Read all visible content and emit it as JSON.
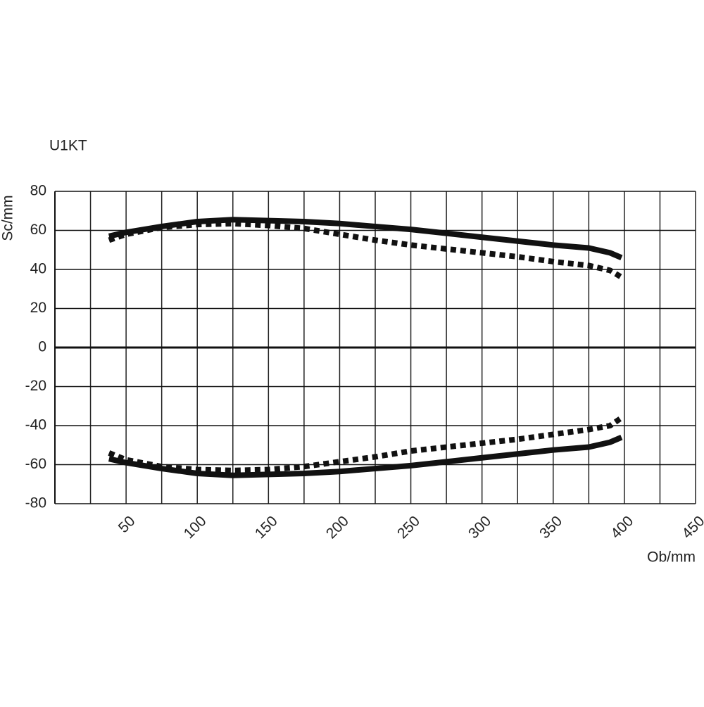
{
  "chart_data": {
    "type": "line",
    "title": "U1KT",
    "x_label": "Ob/mm",
    "y_label": "Sc/mm",
    "x": [
      38,
      50,
      75,
      100,
      125,
      150,
      175,
      200,
      225,
      250,
      275,
      300,
      325,
      350,
      375,
      390,
      398
    ],
    "series": [
      {
        "color": "#111111",
        "dashed": false,
        "values": [
          57,
          59,
          62,
          64.5,
          65.5,
          65,
          64.5,
          63.5,
          62,
          60.5,
          58.5,
          56.5,
          54.5,
          52.5,
          51,
          48.5,
          46
        ]
      },
      {
        "color": "#111111",
        "dashed": true,
        "values": [
          55,
          58,
          61.5,
          63,
          63.5,
          62.5,
          61,
          58,
          55,
          52.5,
          50.5,
          48.5,
          46.5,
          44,
          42,
          39.5,
          36
        ]
      },
      {
        "color": "#111111",
        "dashed": false,
        "values": [
          -57,
          -59,
          -62,
          -64.5,
          -65.5,
          -65,
          -64.5,
          -63.5,
          -62,
          -60.5,
          -58.5,
          -56.5,
          -54.5,
          -52.5,
          -51,
          -48.5,
          -46
        ]
      },
      {
        "color": "#111111",
        "dashed": true,
        "values": [
          -54,
          -57.5,
          -61,
          -62.5,
          -63,
          -62.5,
          -61,
          -58.5,
          -56,
          -53,
          -51,
          -49,
          -47,
          -44.5,
          -42,
          -40,
          -36
        ]
      }
    ],
    "xlim": [
      0,
      450
    ],
    "xticks": [
      50,
      100,
      150,
      200,
      250,
      300,
      350,
      400,
      450
    ],
    "ylim": [
      -80,
      80
    ],
    "yticks": [
      -80,
      -60,
      -40,
      -20,
      0,
      20,
      40,
      60,
      80
    ],
    "grid": true
  }
}
